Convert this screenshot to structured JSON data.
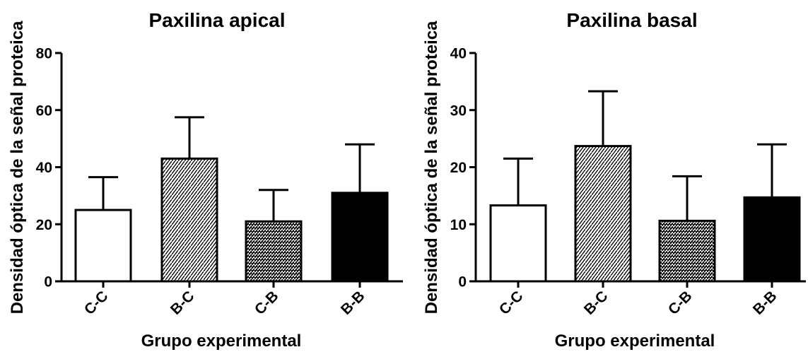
{
  "chart_data": [
    {
      "type": "bar",
      "title": "Paxilina apical",
      "xlabel": "Grupo experimental",
      "ylabel": "Densidad óptica de la señal proteica",
      "categories": [
        "C-C",
        "B-C",
        "C-B",
        "B-B"
      ],
      "values": [
        25,
        43,
        21,
        31
      ],
      "errors": [
        11.5,
        14.5,
        11,
        17
      ],
      "ylim": [
        0,
        80
      ],
      "yticks": [
        0,
        20,
        40,
        60,
        80
      ],
      "fills": [
        "white",
        "hatch-light",
        "hatch-dark",
        "black"
      ]
    },
    {
      "type": "bar",
      "title": "Paxilina basal",
      "xlabel": "Grupo experimental",
      "ylabel": "Densidad óptica de la señal proteica",
      "categories": [
        "C-C",
        "B-C",
        "C-B",
        "B-B"
      ],
      "values": [
        13.3,
        23.7,
        10.6,
        14.7
      ],
      "errors": [
        8.2,
        9.6,
        7.8,
        9.3
      ],
      "ylim": [
        0,
        40
      ],
      "yticks": [
        0,
        10,
        20,
        30,
        40
      ],
      "fills": [
        "white",
        "hatch-light",
        "hatch-dark",
        "black"
      ]
    }
  ]
}
